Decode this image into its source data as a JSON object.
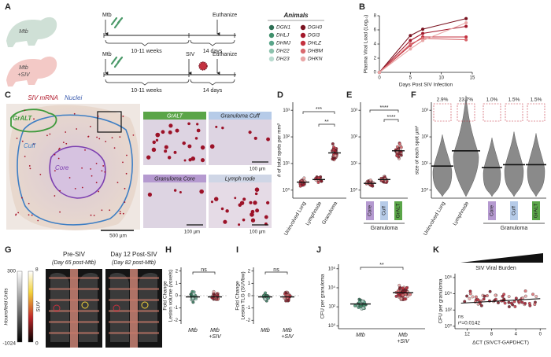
{
  "figure": {
    "panel_a": {
      "label": "A",
      "group_mtb": "Mtb",
      "group_mtb_siv": [
        "Mtb",
        "+SIV"
      ],
      "timeline_1": {
        "infection": "Mtb",
        "end": "Euthanize",
        "period_1": "10-11 weeks",
        "period_2": "14 days"
      },
      "timeline_2": {
        "infection": "Mtb",
        "coinfection": "SIV",
        "end": "Euthanize",
        "period_1": "10-11 weeks",
        "period_2": "14 days"
      },
      "animals_title": "Animals",
      "animals": [
        {
          "name": "DGN1",
          "color": "#2e6f54"
        },
        {
          "name": "DHLJ",
          "color": "#3f8f6b"
        },
        {
          "name": "DHMJ",
          "color": "#5aa58a"
        },
        {
          "name": "DH22",
          "color": "#8cc2ad"
        },
        {
          "name": "DH23",
          "color": "#b9dbd0"
        },
        {
          "name": "DGH0",
          "color": "#7a1320"
        },
        {
          "name": "DGI3",
          "color": "#a3182b"
        },
        {
          "name": "DHLZ",
          "color": "#c4313f"
        },
        {
          "name": "DHBM",
          "color": "#d96a6f"
        },
        {
          "name": "DHKN",
          "color": "#e9a6a6"
        }
      ]
    },
    "panel_c": {
      "label": "C",
      "stain_1": "SIV mRNA",
      "stain_2": "Nuclei",
      "region_1": "GrALT",
      "region_2": "Cuff",
      "region_3": "Core",
      "scale": "500 µm",
      "insets": [
        {
          "title": "GrALT",
          "scale": null
        },
        {
          "title": "Granuloma Cuff",
          "scale": "100 µm"
        },
        {
          "title": "Granuloma Core",
          "scale": "100 µm"
        },
        {
          "title": "Lymph node",
          "scale": "100 µm"
        }
      ]
    },
    "panel_d": {
      "label": "D",
      "ylabel": "# of total spots per mm²",
      "categories": [
        "Uninvolved Lung",
        "Lymphnode",
        "Granuloma"
      ],
      "sig": [
        "***",
        "**"
      ],
      "log": true,
      "ylim": [
        0.5,
        2000
      ],
      "yticks": [
        {
          "value": 1,
          "label": "10⁰"
        },
        {
          "value": 10,
          "label": "10¹"
        },
        {
          "value": 100,
          "label": "10²"
        },
        {
          "value": 1000,
          "label": "10³"
        }
      ]
    },
    "panel_e": {
      "label": "E",
      "categories": [
        "Core",
        "Cuff",
        "GrALT"
      ],
      "group": "Granuloma",
      "sig": [
        "****",
        "****"
      ],
      "log": true,
      "ylim": [
        0.5,
        2000
      ],
      "yticks": [
        {
          "value": 1,
          "label": "10⁰"
        },
        {
          "value": 10,
          "label": "10¹"
        },
        {
          "value": 100,
          "label": "10²"
        },
        {
          "value": 1000,
          "label": "10³"
        }
      ]
    },
    "panel_f": {
      "label": "F",
      "ylabel": "size of each spot µm²",
      "categories": [
        "Uninvolved Lung",
        "Lymphnode",
        "Core",
        "Cuff",
        "GrALT"
      ],
      "group": "Granuloma",
      "percents": [
        "2.9%",
        "23.7%",
        "1.0%",
        "1.5%",
        "1.5%"
      ],
      "log": true,
      "ylim": [
        0.5,
        2000
      ],
      "yticks": [
        {
          "value": 1,
          "label": "10⁰"
        },
        {
          "value": 10,
          "label": "10¹"
        },
        {
          "value": 100,
          "label": "10²"
        },
        {
          "value": 1000,
          "label": "10³"
        }
      ]
    },
    "panel_g": {
      "label": "G",
      "scan_1": "Pre-SIV",
      "scan_1_note": "(Day 65 post-Mtb)",
      "scan_2": "Day 12 Post-SIV",
      "scan_2_note": "(Day 82 post-Mtb)",
      "hu_title": "Hounsfield Units",
      "hu_max": "300",
      "hu_min": "-1024",
      "suv_title": "SUV",
      "suv_max": "8",
      "suv_min": "0"
    },
    "panel_h": {
      "label": "H",
      "ylabel": [
        "Fold Change",
        "Lesion volume (voxels)"
      ],
      "sig": "ns",
      "categories": [
        [
          "Mtb"
        ],
        [
          "Mtb",
          "+SIV"
        ]
      ],
      "ylim": [
        -2.3,
        2.3
      ],
      "yticks": [
        2,
        1,
        0,
        -1,
        -2
      ]
    },
    "panel_i": {
      "label": "I",
      "ylabel": [
        "Fold Change",
        "Lesion TLG (SUVbw)"
      ],
      "sig": "ns",
      "categories": [
        [
          "Mtb"
        ],
        [
          "Mtb",
          "+SIV"
        ]
      ],
      "ylim": [
        -2.3,
        2.3
      ],
      "yticks": [
        2,
        1,
        0,
        -1,
        -2
      ]
    },
    "panel_j": {
      "label": "J",
      "ylabel": "CFU per granuloma",
      "sig": "**",
      "categories": [
        [
          "Mtb"
        ],
        [
          "Mtb",
          "+SIV"
        ]
      ],
      "log": true,
      "ylim": [
        0.5,
        3000000
      ],
      "yticks": [
        {
          "value": 1,
          "label": "10⁰"
        },
        {
          "value": 100,
          "label": "10²"
        },
        {
          "value": 10000,
          "label": "10⁴"
        },
        {
          "value": 1000000,
          "label": "10⁶"
        }
      ]
    },
    "panel_k": {
      "label": "K",
      "title": "SIV Viral Burden",
      "ylabel": "CFU per granuloma",
      "xlabel": "ΔCT (SIVCT-GAPDHCT)",
      "sig": "ns",
      "r2": "r²=0.0142",
      "log": true,
      "ylim": [
        0.5,
        3000000
      ],
      "xlim": [
        14,
        -1
      ],
      "xticks": [
        12,
        8,
        4,
        0
      ],
      "yticks": [
        {
          "value": 1,
          "label": "10⁰"
        },
        {
          "value": 100,
          "label": "10²"
        },
        {
          "value": 10000,
          "label": "10⁴"
        },
        {
          "value": 1000000,
          "label": "10⁶"
        }
      ]
    }
  },
  "chart_data": {
    "type": "line",
    "label": "B",
    "ylabel": "Plasma Viral Load (Log₁₀)",
    "xlabel": "Days Post SIV Infection",
    "xlim": [
      0,
      15
    ],
    "ylim": [
      0,
      8
    ],
    "xticks": [
      0,
      5,
      10,
      15
    ],
    "yticks": [
      0,
      2,
      4,
      6,
      8
    ],
    "series": [
      {
        "color": "#7a1320",
        "x": [
          0,
          5,
          7,
          14
        ],
        "values": [
          0,
          5.2,
          6.1,
          7.6
        ]
      },
      {
        "color": "#a3182b",
        "x": [
          0,
          5,
          7,
          14
        ],
        "values": [
          0,
          4.5,
          5.5,
          6.5
        ]
      },
      {
        "color": "#c4313f",
        "x": [
          0,
          5,
          7,
          14
        ],
        "values": [
          0,
          3.8,
          5.0,
          5.0
        ]
      },
      {
        "color": "#d96a6f",
        "x": [
          0,
          5,
          7,
          14
        ],
        "values": [
          0,
          4.0,
          4.8,
          4.6
        ]
      },
      {
        "color": "#e9a6a6",
        "x": [
          0,
          5,
          7,
          14
        ],
        "values": [
          0,
          3.3,
          4.5,
          7.0
        ]
      }
    ]
  }
}
